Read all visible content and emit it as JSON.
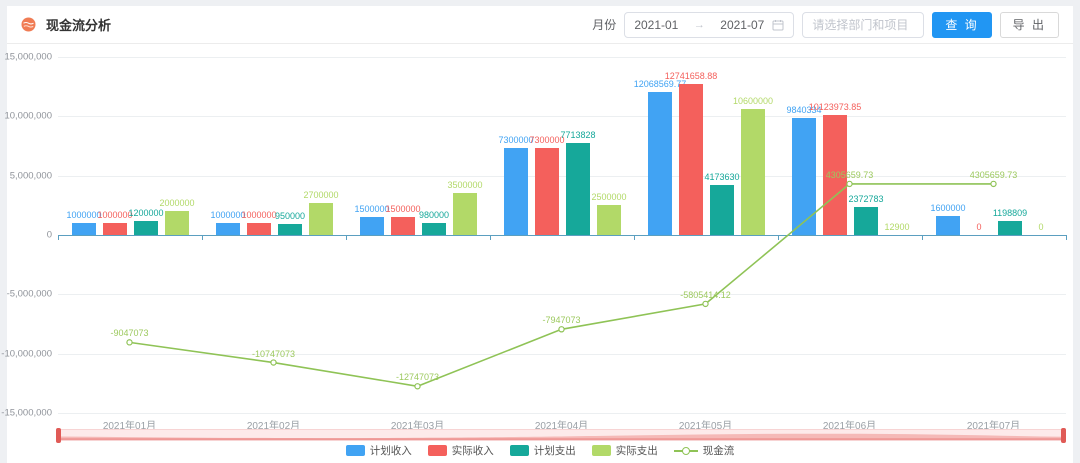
{
  "header": {
    "title": "现金流分析",
    "month_label": "月份",
    "date_start": "2021-01",
    "date_separator": "→",
    "date_end": "2021-07",
    "project_placeholder": "请选择部门和项目",
    "query_button": "查 询",
    "export_button": "导 出"
  },
  "colors": {
    "primary_button": "#2196f3",
    "axis_line": "#5b9fc0",
    "datazoom_handle": "#e05a56",
    "header_icon": "#f07c54"
  },
  "chart_data": {
    "type": "bar",
    "subtype": "grouped bars with overlay line",
    "categories": [
      "2021年01月",
      "2021年02月",
      "2021年03月",
      "2021年04月",
      "2021年05月",
      "2021年06月",
      "2021年07月"
    ],
    "series": [
      {
        "name": "计划收入",
        "type": "bar",
        "color": "#41a3f3",
        "values": [
          1000000,
          1000000,
          1500000,
          7300000,
          12068569.77,
          9840334,
          1600000
        ],
        "labels": [
          "1000000",
          "1000000",
          "1500000",
          "7300000",
          "12068569.77",
          "9840334",
          "1600000"
        ]
      },
      {
        "name": "实际收入",
        "type": "bar",
        "color": "#f4605c",
        "values": [
          1000000,
          1000000,
          1500000,
          7300000,
          12741658.88,
          10123973.85,
          0
        ],
        "labels": [
          "1000000",
          "1000000",
          "1500000",
          "7300000",
          "12741658.88",
          "10123973.85",
          "0"
        ]
      },
      {
        "name": "计划支出",
        "type": "bar",
        "color": "#16a89a",
        "values": [
          1200000,
          950000,
          980000,
          7713828,
          4173630,
          2372783,
          1198809
        ],
        "labels": [
          "1200000",
          "950000",
          "980000",
          "7713828",
          "4173630",
          "2372783",
          "1198809"
        ]
      },
      {
        "name": "实际支出",
        "type": "bar",
        "color": "#b2d968",
        "values": [
          2000000,
          2700000,
          3500000,
          2500000,
          10600000,
          12900,
          0
        ],
        "labels": [
          "2000000",
          "2700000",
          "3500000",
          "2500000",
          "10600000",
          "12900",
          "0"
        ]
      },
      {
        "name": "现金流",
        "type": "line",
        "color": "#8fc356",
        "label_color": "#9cc95e",
        "values": [
          -9047073,
          -10747073,
          -12747073,
          -7947073,
          -5805414.12,
          4305659.73,
          4305659.73
        ],
        "labels": [
          "-9047073",
          "-10747073",
          "-12747073",
          "-7947073",
          "-5805414.12",
          "4305659.73",
          "4305659.73"
        ]
      }
    ],
    "ylim": [
      -15000000,
      15000000
    ],
    "y_ticks": [
      {
        "value": 15000000,
        "label": "15,000,000"
      },
      {
        "value": 10000000,
        "label": "10,000,000"
      },
      {
        "value": 5000000,
        "label": "5,000,000"
      },
      {
        "value": 0,
        "label": "0"
      },
      {
        "value": -5000000,
        "label": "-5,000,000"
      },
      {
        "value": -10000000,
        "label": "-10,000,000"
      },
      {
        "value": -15000000,
        "label": "-15,000,000"
      }
    ],
    "legend_position": "bottom",
    "grid": true
  }
}
